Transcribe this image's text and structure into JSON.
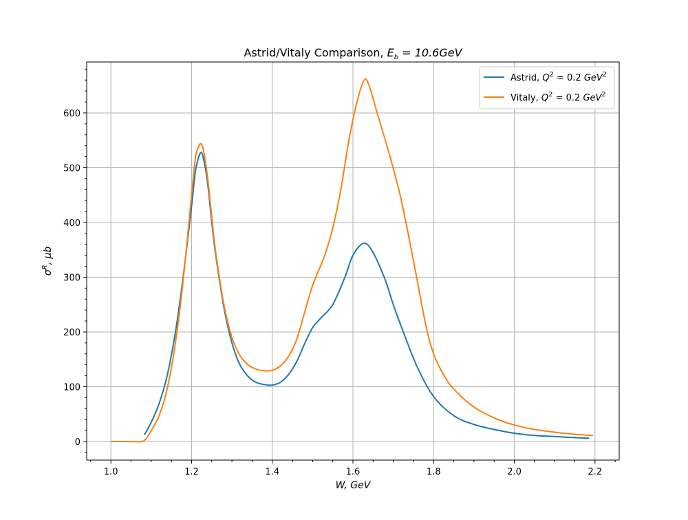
{
  "chart_data": {
    "type": "line",
    "title": "Astrid/Vitaly Comparison, E_b = 10.6GeV",
    "xlabel": "W, GeV",
    "ylabel": "σ^R, μb",
    "xlim": [
      0.94,
      2.26
    ],
    "ylim": [
      -34,
      693
    ],
    "xticks": [
      "1.0",
      "1.2",
      "1.4",
      "1.6",
      "1.8",
      "2.0",
      "2.2"
    ],
    "yticks": [
      "0",
      "100",
      "200",
      "300",
      "400",
      "500",
      "600"
    ],
    "grid": true,
    "legend": "top-right",
    "series": [
      {
        "name": "Astrid, Q^2 = 0.2 GeV^2",
        "color": "#1f77b4",
        "points": [
          [
            1.083,
            12
          ],
          [
            1.1,
            35
          ],
          [
            1.12,
            70
          ],
          [
            1.14,
            122
          ],
          [
            1.16,
            200
          ],
          [
            1.18,
            305
          ],
          [
            1.2,
            430
          ],
          [
            1.21,
            495
          ],
          [
            1.222,
            527
          ],
          [
            1.23,
            515
          ],
          [
            1.24,
            470
          ],
          [
            1.25,
            400
          ],
          [
            1.26,
            340
          ],
          [
            1.28,
            245
          ],
          [
            1.3,
            180
          ],
          [
            1.32,
            140
          ],
          [
            1.34,
            119
          ],
          [
            1.36,
            108
          ],
          [
            1.38,
            104
          ],
          [
            1.4,
            103
          ],
          [
            1.42,
            108
          ],
          [
            1.44,
            122
          ],
          [
            1.46,
            145
          ],
          [
            1.48,
            178
          ],
          [
            1.5,
            208
          ],
          [
            1.52,
            225
          ],
          [
            1.55,
            250
          ],
          [
            1.58,
            300
          ],
          [
            1.6,
            340
          ],
          [
            1.627,
            362
          ],
          [
            1.65,
            345
          ],
          [
            1.68,
            295
          ],
          [
            1.7,
            250
          ],
          [
            1.73,
            190
          ],
          [
            1.76,
            135
          ],
          [
            1.8,
            82
          ],
          [
            1.85,
            47
          ],
          [
            1.9,
            31
          ],
          [
            1.95,
            22
          ],
          [
            2.0,
            15
          ],
          [
            2.05,
            11
          ],
          [
            2.1,
            9
          ],
          [
            2.15,
            7
          ],
          [
            2.185,
            6
          ]
        ]
      },
      {
        "name": "Vitaly, Q^2 = 0.2 GeV^2",
        "color": "#ff7f0e",
        "points": [
          [
            1.0,
            0
          ],
          [
            1.05,
            0
          ],
          [
            1.078,
            0
          ],
          [
            1.09,
            8
          ],
          [
            1.1,
            20
          ],
          [
            1.12,
            48
          ],
          [
            1.14,
            98
          ],
          [
            1.16,
            180
          ],
          [
            1.18,
            300
          ],
          [
            1.2,
            450
          ],
          [
            1.21,
            520
          ],
          [
            1.22,
            542
          ],
          [
            1.225,
            542
          ],
          [
            1.23,
            530
          ],
          [
            1.24,
            480
          ],
          [
            1.25,
            410
          ],
          [
            1.26,
            345
          ],
          [
            1.28,
            250
          ],
          [
            1.3,
            190
          ],
          [
            1.32,
            157
          ],
          [
            1.34,
            140
          ],
          [
            1.36,
            132
          ],
          [
            1.38,
            129
          ],
          [
            1.4,
            130
          ],
          [
            1.42,
            138
          ],
          [
            1.44,
            155
          ],
          [
            1.46,
            185
          ],
          [
            1.48,
            235
          ],
          [
            1.5,
            285
          ],
          [
            1.53,
            340
          ],
          [
            1.55,
            390
          ],
          [
            1.57,
            460
          ],
          [
            1.59,
            550
          ],
          [
            1.61,
            620
          ],
          [
            1.628,
            660
          ],
          [
            1.64,
            650
          ],
          [
            1.66,
            600
          ],
          [
            1.69,
            525
          ],
          [
            1.72,
            440
          ],
          [
            1.75,
            330
          ],
          [
            1.78,
            215
          ],
          [
            1.8,
            160
          ],
          [
            1.83,
            115
          ],
          [
            1.86,
            88
          ],
          [
            1.9,
            63
          ],
          [
            1.95,
            43
          ],
          [
            2.0,
            30
          ],
          [
            2.05,
            22
          ],
          [
            2.1,
            17
          ],
          [
            2.15,
            13
          ],
          [
            2.195,
            11
          ]
        ]
      }
    ]
  }
}
